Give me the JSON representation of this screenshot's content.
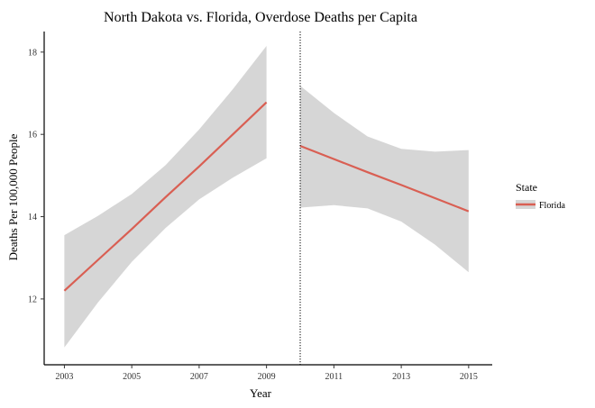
{
  "chart_data": {
    "type": "line",
    "title": "North Dakota vs. Florida, Overdose Deaths per Capita",
    "xlabel": "Year",
    "ylabel": "Deaths Per 100,000 People",
    "xlim": [
      2002.4,
      2015.7
    ],
    "ylim": [
      10.4,
      18.5
    ],
    "x_ticks": [
      2003,
      2005,
      2007,
      2009,
      2011,
      2013,
      2015
    ],
    "y_ticks": [
      12,
      14,
      16,
      18
    ],
    "grid": false,
    "cutoff_x": 2010,
    "legend": {
      "title": "State",
      "position": "right",
      "entries": [
        "Florida"
      ]
    },
    "colors": {
      "line": "#d95f53",
      "ribbon": "#d6d6d6",
      "cutoff": "#000000"
    },
    "segments": [
      {
        "x": [
          2003,
          2004,
          2005,
          2006,
          2007,
          2008,
          2009
        ],
        "fit": [
          12.2,
          12.95,
          13.7,
          14.47,
          15.22,
          16.0,
          16.78
        ],
        "lower": [
          10.82,
          11.92,
          12.9,
          13.72,
          14.42,
          14.95,
          15.42
        ],
        "upper": [
          13.55,
          14.02,
          14.55,
          15.25,
          16.12,
          17.1,
          18.15
        ]
      },
      {
        "x": [
          2010,
          2011,
          2012,
          2013,
          2014,
          2015
        ],
        "fit": [
          15.72,
          15.4,
          15.08,
          14.77,
          14.45,
          14.13
        ],
        "lower": [
          14.22,
          14.28,
          14.2,
          13.88,
          13.32,
          12.65
        ],
        "upper": [
          17.18,
          16.52,
          15.95,
          15.65,
          15.58,
          15.62
        ]
      }
    ]
  }
}
